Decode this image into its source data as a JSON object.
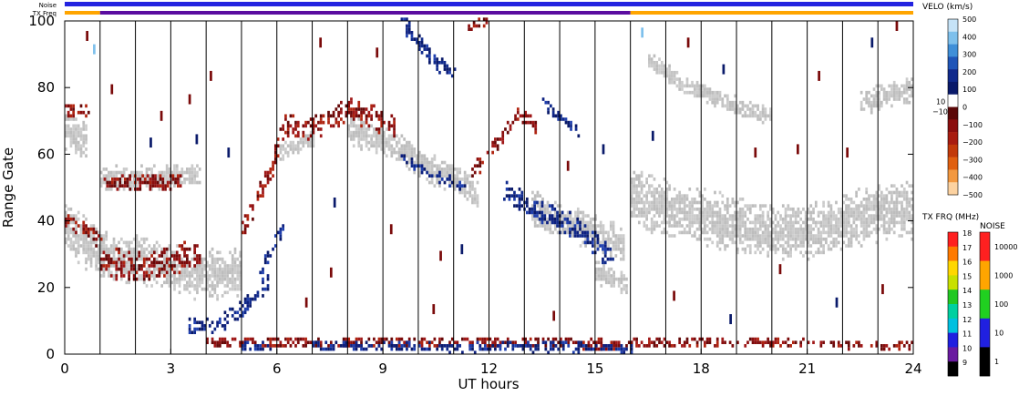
{
  "chart_data": {
    "type": "heatmap",
    "title": "",
    "xlabel": "UT hours",
    "ylabel": "Range Gate",
    "xlim": [
      0,
      24
    ],
    "ylim": [
      0,
      100
    ],
    "x_ticks": [
      "0",
      "3",
      "6",
      "9",
      "12",
      "15",
      "18",
      "21",
      "24"
    ],
    "y_ticks": [
      "0",
      "20",
      "40",
      "60",
      "80",
      "100"
    ],
    "grid": "vertical lines every hour",
    "status_bars": {
      "noise_label": "Noise",
      "txfreq_label": "TX Freq",
      "noise_color": "#2323e0",
      "txfreq_segments": [
        {
          "from": 0,
          "to": 1,
          "color": "#ffa500"
        },
        {
          "from": 1,
          "to": 16,
          "color": "#5b0da0"
        },
        {
          "from": 16,
          "to": 24,
          "color": "#ffa500"
        }
      ]
    },
    "velocity_scale": {
      "title": "VELO (km/s)",
      "ticks": [
        "500",
        "400",
        "300",
        "200",
        "100",
        "0",
        "−100",
        "−200",
        "−300",
        "−400",
        "−500"
      ],
      "threshold_labels": [
        "10",
        "−10"
      ],
      "colors": [
        "#c6e3f7",
        "#7ec0ec",
        "#3f8fd8",
        "#1f55b8",
        "#102a8c",
        "#0a1a6a",
        "#ffffff",
        "#5a0808",
        "#8b0e0e",
        "#a81c10",
        "#c23a0a",
        "#e06010",
        "#f29840",
        "#fcd2a0"
      ]
    },
    "txfreq_scale": {
      "title": "TX FRQ (MHz)",
      "ticks": [
        "18",
        "17",
        "16",
        "15",
        "14",
        "13",
        "12",
        "11",
        "10",
        "9"
      ],
      "colors": [
        "#ff2020",
        "#ff7a00",
        "#ffd700",
        "#c8e000",
        "#22c822",
        "#00d0a0",
        "#00c0e0",
        "#2020e0",
        "#6a1aa0",
        "#000000"
      ]
    },
    "noise_scale": {
      "title": "NOISE",
      "ticks": [
        "10000",
        "1000",
        "100",
        "10",
        "1"
      ],
      "colors": [
        "#ff2020",
        "#ffa500",
        "#20d020",
        "#2020e0",
        "#000000"
      ]
    },
    "scatter_color": "#c4c4c4",
    "regions": [
      {
        "kind": "ground",
        "pts": [
          [
            0,
            38
          ],
          [
            1,
            29
          ],
          [
            2,
            28
          ],
          [
            3,
            25
          ],
          [
            4,
            23
          ],
          [
            5,
            25
          ]
        ],
        "w": 8
      },
      {
        "kind": "ground",
        "pts": [
          [
            0,
            66
          ],
          [
            0.6,
            63
          ]
        ],
        "w": 6
      },
      {
        "kind": "ground",
        "pts": [
          [
            1,
            52
          ],
          [
            3.2,
            53
          ],
          [
            3.8,
            54
          ]
        ],
        "w": 4
      },
      {
        "kind": "ground",
        "pts": [
          [
            8,
            66
          ],
          [
            9,
            64
          ],
          [
            10,
            57
          ],
          [
            11,
            52
          ],
          [
            11.7,
            47
          ]
        ],
        "w": 5
      },
      {
        "kind": "ground",
        "pts": [
          [
            13.2,
            43
          ],
          [
            14.5,
            38
          ],
          [
            15.8,
            32
          ]
        ],
        "w": 6
      },
      {
        "kind": "ground",
        "pts": [
          [
            15,
            24
          ],
          [
            15.9,
            20
          ]
        ],
        "w": 4
      },
      {
        "kind": "ground",
        "pts": [
          [
            16,
            47
          ],
          [
            17,
            43
          ],
          [
            18,
            41
          ],
          [
            19,
            38
          ],
          [
            20,
            36
          ],
          [
            21,
            36
          ],
          [
            22,
            39
          ],
          [
            23,
            42
          ],
          [
            24,
            43
          ]
        ],
        "w": 9
      },
      {
        "kind": "ground",
        "pts": [
          [
            16.5,
            88
          ],
          [
            17.5,
            80
          ],
          [
            18.5,
            76
          ],
          [
            19.5,
            72
          ],
          [
            20,
            71
          ]
        ],
        "w": 3
      },
      {
        "kind": "ground",
        "pts": [
          [
            22.5,
            75
          ],
          [
            24,
            79
          ]
        ],
        "w": 4
      },
      {
        "kind": "ground",
        "pts": [
          [
            6,
            60
          ],
          [
            7,
            64
          ]
        ],
        "w": 3
      },
      {
        "kind": "red",
        "pts": [
          [
            5,
            37
          ],
          [
            5.3,
            43
          ],
          [
            5.8,
            55
          ],
          [
            6.2,
            68
          ],
          [
            6.8,
            67
          ],
          [
            7.2,
            68
          ],
          [
            8,
            73
          ],
          [
            8.6,
            71
          ],
          [
            9.3,
            68
          ]
        ],
        "w": 4
      },
      {
        "kind": "red",
        "pts": [
          [
            1,
            27
          ],
          [
            2,
            26
          ],
          [
            3,
            27
          ],
          [
            3.8,
            30
          ]
        ],
        "w": 5
      },
      {
        "kind": "red",
        "pts": [
          [
            0,
            40
          ],
          [
            1,
            34
          ]
        ],
        "w": 3
      },
      {
        "kind": "red",
        "pts": [
          [
            1.1,
            51
          ],
          [
            2.2,
            51
          ],
          [
            3.3,
            51
          ]
        ],
        "w": 2.5
      },
      {
        "kind": "red",
        "pts": [
          [
            11.5,
            54
          ],
          [
            12.2,
            62
          ],
          [
            12.8,
            72
          ],
          [
            13.3,
            68
          ]
        ],
        "w": 3
      },
      {
        "kind": "red",
        "pts": [
          [
            11.4,
            98
          ],
          [
            11.9,
            100
          ]
        ],
        "w": 2
      },
      {
        "kind": "red",
        "pts": [
          [
            4,
            3
          ],
          [
            6,
            3
          ],
          [
            8,
            3
          ],
          [
            10,
            3
          ],
          [
            12,
            3
          ],
          [
            14,
            3
          ],
          [
            16,
            2
          ]
        ],
        "w": 2
      },
      {
        "kind": "red",
        "pts": [
          [
            16,
            3
          ],
          [
            20,
            3
          ],
          [
            24,
            2
          ]
        ],
        "w": 1.5
      },
      {
        "kind": "red",
        "pts": [
          [
            0,
            73
          ],
          [
            0.7,
            72
          ]
        ],
        "w": 2
      },
      {
        "kind": "blue",
        "pts": [
          [
            3.5,
            8
          ],
          [
            4.3,
            8
          ],
          [
            4.8,
            12
          ],
          [
            5.3,
            16
          ],
          [
            5.8,
            22
          ]
        ],
        "w": 3
      },
      {
        "kind": "blue",
        "pts": [
          [
            5.5,
            24
          ],
          [
            6,
            35
          ],
          [
            6.2,
            38
          ]
        ],
        "w": 2.5
      },
      {
        "kind": "blue",
        "pts": [
          [
            9.5,
            99
          ],
          [
            10.3,
            89
          ],
          [
            11,
            83
          ]
        ],
        "w": 3
      },
      {
        "kind": "blue",
        "pts": [
          [
            12.4,
            48
          ],
          [
            13.3,
            43
          ],
          [
            14.5,
            37
          ],
          [
            15.5,
            28
          ]
        ],
        "w": 4
      },
      {
        "kind": "blue",
        "pts": [
          [
            7,
            2
          ],
          [
            9,
            2
          ],
          [
            11,
            1
          ],
          [
            13,
            2
          ],
          [
            16,
            1
          ]
        ],
        "w": 2
      },
      {
        "kind": "blue",
        "pts": [
          [
            9.5,
            58
          ],
          [
            10.5,
            53
          ],
          [
            11.3,
            50
          ]
        ],
        "w": 2
      },
      {
        "kind": "blue",
        "pts": [
          [
            13.5,
            75
          ],
          [
            14.5,
            66
          ]
        ],
        "w": 2
      },
      {
        "kind": "blue",
        "pts": [
          [
            5,
            2
          ],
          [
            5.8,
            1.5
          ]
        ],
        "w": 1.5
      }
    ],
    "isolated_marks": [
      {
        "x": 1.3,
        "y": 78,
        "c": "red"
      },
      {
        "x": 2.7,
        "y": 70,
        "c": "red"
      },
      {
        "x": 0.8,
        "y": 90,
        "c": "lightblue"
      },
      {
        "x": 0.6,
        "y": 94,
        "c": "red"
      },
      {
        "x": 2.4,
        "y": 62,
        "c": "blue"
      },
      {
        "x": 3.5,
        "y": 75,
        "c": "red"
      },
      {
        "x": 4.1,
        "y": 82,
        "c": "red"
      },
      {
        "x": 4.6,
        "y": 59,
        "c": "blue"
      },
      {
        "x": 3.7,
        "y": 63,
        "c": "blue"
      },
      {
        "x": 7.2,
        "y": 92,
        "c": "red"
      },
      {
        "x": 8.8,
        "y": 89,
        "c": "red"
      },
      {
        "x": 7.6,
        "y": 44,
        "c": "blue"
      },
      {
        "x": 9.2,
        "y": 36,
        "c": "red"
      },
      {
        "x": 10.6,
        "y": 28,
        "c": "red"
      },
      {
        "x": 10.4,
        "y": 12,
        "c": "red"
      },
      {
        "x": 11.2,
        "y": 30,
        "c": "blue"
      },
      {
        "x": 6.8,
        "y": 14,
        "c": "red"
      },
      {
        "x": 7.5,
        "y": 23,
        "c": "red"
      },
      {
        "x": 14.2,
        "y": 55,
        "c": "red"
      },
      {
        "x": 15.2,
        "y": 60,
        "c": "blue"
      },
      {
        "x": 13.8,
        "y": 10,
        "c": "red"
      },
      {
        "x": 16.3,
        "y": 95,
        "c": "lightblue"
      },
      {
        "x": 17.6,
        "y": 92,
        "c": "red"
      },
      {
        "x": 18.6,
        "y": 84,
        "c": "blue"
      },
      {
        "x": 19.5,
        "y": 59,
        "c": "red"
      },
      {
        "x": 20.7,
        "y": 60,
        "c": "red"
      },
      {
        "x": 21.3,
        "y": 82,
        "c": "red"
      },
      {
        "x": 22.8,
        "y": 92,
        "c": "blue"
      },
      {
        "x": 23.5,
        "y": 97,
        "c": "red"
      },
      {
        "x": 20.2,
        "y": 24,
        "c": "red"
      },
      {
        "x": 21.8,
        "y": 14,
        "c": "blue"
      },
      {
        "x": 23.1,
        "y": 18,
        "c": "red"
      },
      {
        "x": 17.2,
        "y": 16,
        "c": "red"
      },
      {
        "x": 18.8,
        "y": 9,
        "c": "blue"
      },
      {
        "x": 16.6,
        "y": 64,
        "c": "blue"
      },
      {
        "x": 22.1,
        "y": 59,
        "c": "red"
      }
    ]
  }
}
